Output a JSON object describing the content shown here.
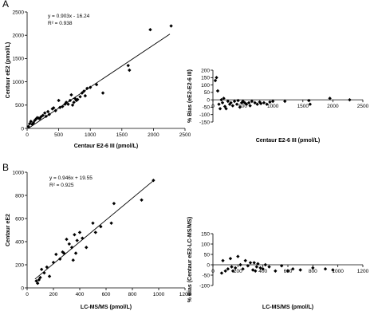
{
  "panels": [
    {
      "letter": "A",
      "charts": [
        {
          "type": "scatter",
          "xlabel": "Centaur E2-6 III (pmol/L)",
          "ylabel": "Centaur eE2 (pmol/L)",
          "xlim": [
            0,
            2500
          ],
          "ylim": [
            0,
            2500
          ],
          "xticks": [
            "0",
            "500",
            "1000",
            "1500",
            "2000",
            "2500"
          ],
          "yticks": [
            "0",
            "500",
            "1000",
            "1500",
            "2000",
            "2500"
          ],
          "equation": "y = 0.903x - 16.24",
          "r2": "R² = 0.938",
          "trendline": {
            "slope": 0.903,
            "intercept": -16.24,
            "x_range": [
              20,
              2260
            ]
          },
          "points": [
            [
              20,
              40
            ],
            [
              40,
              100
            ],
            [
              60,
              150
            ],
            [
              80,
              90
            ],
            [
              100,
              120
            ],
            [
              120,
              170
            ],
            [
              140,
              200
            ],
            [
              160,
              230
            ],
            [
              180,
              220
            ],
            [
              200,
              210
            ],
            [
              220,
              250
            ],
            [
              250,
              280
            ],
            [
              280,
              330
            ],
            [
              300,
              260
            ],
            [
              330,
              360
            ],
            [
              350,
              300
            ],
            [
              400,
              420
            ],
            [
              420,
              440
            ],
            [
              450,
              380
            ],
            [
              500,
              600
            ],
            [
              520,
              450
            ],
            [
              560,
              470
            ],
            [
              600,
              520
            ],
            [
              620,
              560
            ],
            [
              650,
              520
            ],
            [
              680,
              600
            ],
            [
              700,
              720
            ],
            [
              720,
              500
            ],
            [
              740,
              560
            ],
            [
              760,
              640
            ],
            [
              780,
              600
            ],
            [
              800,
              620
            ],
            [
              840,
              680
            ],
            [
              870,
              760
            ],
            [
              900,
              800
            ],
            [
              920,
              700
            ],
            [
              950,
              860
            ],
            [
              1000,
              880
            ],
            [
              1100,
              940
            ],
            [
              1200,
              760
            ],
            [
              1600,
              1350
            ],
            [
              1620,
              1250
            ],
            [
              1950,
              2120
            ],
            [
              2280,
              2200
            ]
          ]
        },
        {
          "type": "scatter",
          "xlabel": "Centaur E2-6 III (pmol/L)",
          "ylabel": "% Bias (eE2-E2-6 III)",
          "xlim": [
            0,
            2500
          ],
          "ylim": [
            -150,
            200
          ],
          "xticks": [
            "0",
            "500",
            "1000",
            "1500",
            "2000",
            "2500"
          ],
          "yticks": [
            "-150",
            "-100",
            "-50",
            "0",
            "50",
            "100",
            "150",
            "200"
          ],
          "points": [
            [
              40,
              130
            ],
            [
              60,
              150
            ],
            [
              80,
              60
            ],
            [
              100,
              -30
            ],
            [
              120,
              -60
            ],
            [
              140,
              0
            ],
            [
              160,
              -20
            ],
            [
              180,
              10
            ],
            [
              200,
              -45
            ],
            [
              220,
              -60
            ],
            [
              250,
              -10
            ],
            [
              280,
              -30
            ],
            [
              300,
              -20
            ],
            [
              330,
              -40
            ],
            [
              360,
              -10
            ],
            [
              400,
              -30
            ],
            [
              420,
              -5
            ],
            [
              450,
              -50
            ],
            [
              480,
              -20
            ],
            [
              500,
              -10
            ],
            [
              530,
              -20
            ],
            [
              560,
              -30
            ],
            [
              600,
              -20
            ],
            [
              620,
              -40
            ],
            [
              650,
              -10
            ],
            [
              700,
              -20
            ],
            [
              740,
              -30
            ],
            [
              780,
              -15
            ],
            [
              800,
              -25
            ],
            [
              850,
              -20
            ],
            [
              900,
              -30
            ],
            [
              950,
              -15
            ],
            [
              1000,
              -10
            ],
            [
              1200,
              -10
            ],
            [
              1600,
              -5
            ],
            [
              1620,
              -30
            ],
            [
              1950,
              10
            ],
            [
              2280,
              0
            ]
          ]
        }
      ]
    },
    {
      "letter": "B",
      "charts": [
        {
          "type": "scatter",
          "xlabel": "LC-MS/MS (pmol/L)",
          "ylabel": "Centaur eE2",
          "xlim": [
            0,
            1200
          ],
          "ylim": [
            0,
            1000
          ],
          "xticks": [
            "0",
            "200",
            "400",
            "600",
            "800",
            "1000",
            "1200"
          ],
          "yticks": [
            "0",
            "200",
            "400",
            "600",
            "800",
            "1000"
          ],
          "equation": "y = 0.946x + 19.55",
          "r2": "R² = 0.925",
          "trendline": {
            "slope": 0.946,
            "intercept": 19.55,
            "x_range": [
              60,
              965
            ]
          },
          "points": [
            [
              70,
              60
            ],
            [
              80,
              40
            ],
            [
              90,
              70
            ],
            [
              100,
              90
            ],
            [
              110,
              160
            ],
            [
              130,
              130
            ],
            [
              150,
              180
            ],
            [
              170,
              100
            ],
            [
              200,
              220
            ],
            [
              220,
              290
            ],
            [
              250,
              250
            ],
            [
              270,
              310
            ],
            [
              280,
              300
            ],
            [
              300,
              420
            ],
            [
              320,
              380
            ],
            [
              340,
              350
            ],
            [
              350,
              240
            ],
            [
              360,
              460
            ],
            [
              370,
              300
            ],
            [
              380,
              410
            ],
            [
              400,
              480
            ],
            [
              420,
              430
            ],
            [
              450,
              350
            ],
            [
              500,
              560
            ],
            [
              520,
              480
            ],
            [
              560,
              530
            ],
            [
              640,
              560
            ],
            [
              660,
              730
            ],
            [
              870,
              760
            ],
            [
              960,
              930
            ]
          ]
        },
        {
          "type": "scatter",
          "xlabel": "LC-MS/MS (pmol/L)",
          "ylabel": "% Bias (Centaur eE2-LC-MS/MS)",
          "xlim": [
            0,
            1200
          ],
          "ylim": [
            -100,
            150
          ],
          "xticks": [
            "0",
            "200",
            "400",
            "600",
            "800",
            "1000",
            "1200"
          ],
          "yticks": [
            "-100",
            "-50",
            "0",
            "50",
            "100",
            "150"
          ],
          "points": [
            [
              70,
              -40
            ],
            [
              80,
              20
            ],
            [
              100,
              -30
            ],
            [
              120,
              -20
            ],
            [
              140,
              30
            ],
            [
              150,
              -10
            ],
            [
              160,
              -30
            ],
            [
              180,
              -15
            ],
            [
              200,
              40
            ],
            [
              220,
              0
            ],
            [
              240,
              -20
            ],
            [
              260,
              20
            ],
            [
              280,
              -5
            ],
            [
              300,
              10
            ],
            [
              320,
              -25
            ],
            [
              330,
              10
            ],
            [
              340,
              -30
            ],
            [
              350,
              -10
            ],
            [
              360,
              5
            ],
            [
              380,
              -15
            ],
            [
              400,
              -20
            ],
            [
              420,
              0
            ],
            [
              450,
              -10
            ],
            [
              500,
              -30
            ],
            [
              550,
              -5
            ],
            [
              600,
              -30
            ],
            [
              640,
              -20
            ],
            [
              700,
              -25
            ],
            [
              800,
              -15
            ],
            [
              900,
              -20
            ],
            [
              960,
              -25
            ]
          ]
        }
      ]
    }
  ]
}
